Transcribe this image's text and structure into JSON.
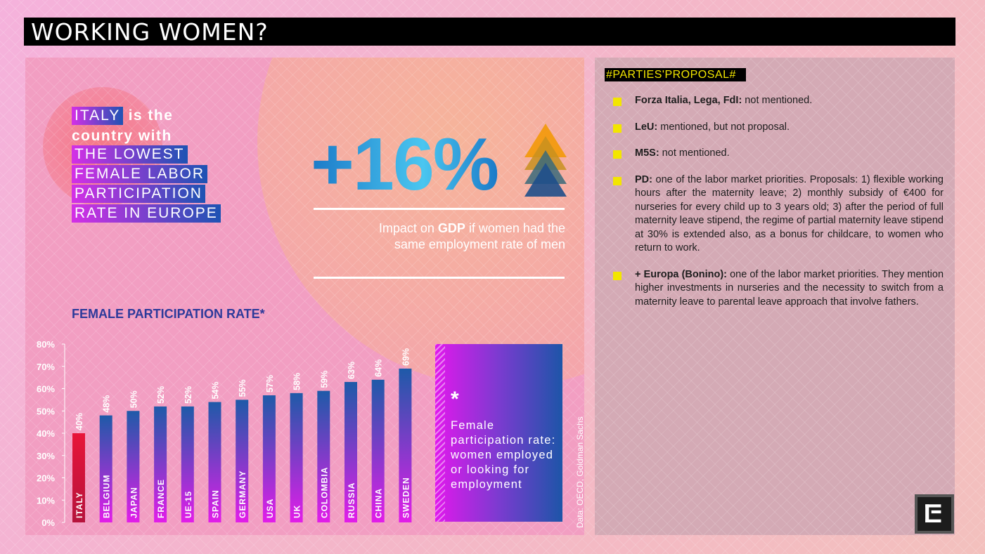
{
  "page_title": "WORKING WOMEN?",
  "headline": {
    "line1_highlight": "ITALY",
    "line1_rest": " is the",
    "line2": "country with",
    "highlights": [
      "THE LOWEST",
      "FEMALE LABOR",
      "PARTICIPATION",
      "RATE IN EUROPE"
    ]
  },
  "impact": {
    "value": "+16%",
    "caption_pre": "Impact on ",
    "caption_bold": "GDP",
    "caption_post": " if women had the same employment rate of men"
  },
  "footnote": {
    "star": "*",
    "text": "Female participation rate: women employed or looking for employment"
  },
  "source": "Data: OECD, Goldman Sachs",
  "colors": {
    "bar_gradient_top": "#1e5aa8",
    "bar_gradient_bottom": "#e21de9",
    "italy_bar_top": "#e8153a",
    "italy_bar_bottom": "#b5133c",
    "accent_yellow": "#f3e600",
    "chart_title": "#2c3a9a"
  },
  "chart_data": {
    "type": "bar",
    "title": "FEMALE PARTICIPATION RATE*",
    "xlabel": "",
    "ylabel": "",
    "ylim": [
      0,
      80
    ],
    "yticks": [
      "0%",
      "10%",
      "20%",
      "30%",
      "40%",
      "50%",
      "60%",
      "70%",
      "80%"
    ],
    "categories": [
      "ITALY",
      "BELGIUM",
      "JAPAN",
      "FRANCE",
      "UE-15",
      "SPAIN",
      "GERMANY",
      "USA",
      "UK",
      "COLOMBIA",
      "RUSSIA",
      "CHINA",
      "SWEDEN"
    ],
    "values": [
      40,
      48,
      50,
      52,
      52,
      54,
      55,
      57,
      58,
      59,
      63,
      64,
      69
    ],
    "data_labels": [
      "40%",
      "48%",
      "50%",
      "52%",
      "52%",
      "54%",
      "55%",
      "57%",
      "58%",
      "59%",
      "63%",
      "64%",
      "69%"
    ],
    "grid": false
  },
  "proposals": {
    "title": "#PARTIES'PROPOSAL#",
    "items": [
      {
        "party": "Forza Italia, Lega, FdI:",
        "text": " not mentioned."
      },
      {
        "party": "LeU:",
        "text": " mentioned, but not proposal."
      },
      {
        "party": "M5S:",
        "text": " not mentioned."
      },
      {
        "party": "PD:",
        "text": " one of the labor market priorities. Proposals: 1) flexible working hours after the maternity leave; 2) monthly subsidy of €400 for nurseries for every child up to 3 years old; 3) after the period of full maternity leave stipend, the regime of partial maternity leave stipend at 30% is extended also, as a bonus for childcare, to women who return to work."
      },
      {
        "party": "+ Europa (Bonino):",
        "text": " one of the labor market priorities. They mention higher investments in nurseries and the necessity to switch from a maternity leave to parental leave approach that involve fathers."
      }
    ]
  }
}
